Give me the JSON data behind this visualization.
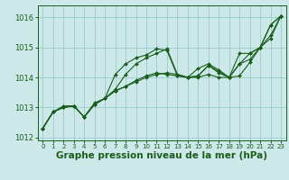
{
  "background_color": "#cce8e8",
  "grid_color": "#99cccc",
  "line_color": "#1a5c1a",
  "marker_color": "#1a5c1a",
  "xlabel": "Graphe pression niveau de la mer (hPa)",
  "xlabel_fontsize": 7.5,
  "xlim": [
    -0.5,
    23.5
  ],
  "ylim": [
    1011.9,
    1016.4
  ],
  "yticks": [
    1012,
    1013,
    1014,
    1015,
    1016
  ],
  "xticks": [
    0,
    1,
    2,
    3,
    4,
    5,
    6,
    7,
    8,
    9,
    10,
    11,
    12,
    13,
    14,
    15,
    16,
    17,
    18,
    19,
    20,
    21,
    22,
    23
  ],
  "series": [
    {
      "x": [
        0,
        1,
        2,
        3,
        4,
        5,
        6,
        7,
        8,
        9,
        10,
        11,
        12,
        13,
        14,
        15,
        16,
        17,
        18,
        19,
        20,
        21,
        22,
        23
      ],
      "y": [
        1012.3,
        1012.85,
        1013.0,
        1013.05,
        1012.68,
        1013.1,
        1013.3,
        1013.55,
        1013.7,
        1013.85,
        1014.0,
        1014.1,
        1014.15,
        1014.1,
        1014.0,
        1014.0,
        1014.1,
        1014.0,
        1014.0,
        1014.05,
        1014.5,
        1015.0,
        1015.3,
        1016.05
      ]
    },
    {
      "x": [
        0,
        1,
        2,
        3,
        4,
        5,
        6,
        7,
        8,
        9,
        10,
        11,
        12,
        13,
        14,
        15,
        16,
        17,
        18,
        19,
        20,
        21,
        22,
        23
      ],
      "y": [
        1012.3,
        1012.85,
        1013.0,
        1013.05,
        1012.68,
        1013.1,
        1013.3,
        1013.6,
        1014.1,
        1014.45,
        1014.65,
        1014.8,
        1014.95,
        1014.1,
        1014.0,
        1014.05,
        1014.4,
        1014.2,
        1014.0,
        1014.45,
        1014.6,
        1015.0,
        1015.75,
        1016.05
      ]
    },
    {
      "x": [
        0,
        1,
        2,
        3,
        4,
        5,
        6,
        7,
        8,
        9,
        10,
        11,
        12,
        13,
        14,
        15,
        16,
        17,
        18,
        19,
        20,
        21,
        22,
        23
      ],
      "y": [
        1012.3,
        1012.85,
        1013.0,
        1013.05,
        1012.68,
        1013.1,
        1013.3,
        1014.1,
        1014.45,
        1014.65,
        1014.75,
        1014.95,
        1014.9,
        1014.05,
        1014.0,
        1014.05,
        1014.4,
        1014.15,
        1014.0,
        1014.45,
        1014.8,
        1015.0,
        1015.75,
        1016.05
      ]
    },
    {
      "x": [
        0,
        1,
        2,
        3,
        4,
        5,
        6,
        7,
        8,
        9,
        10,
        11,
        12,
        13,
        14,
        15,
        16,
        17,
        18,
        19,
        20,
        21,
        22,
        23
      ],
      "y": [
        1012.3,
        1012.85,
        1013.05,
        1013.05,
        1012.68,
        1013.15,
        1013.3,
        1013.55,
        1013.7,
        1013.9,
        1014.05,
        1014.15,
        1014.1,
        1014.05,
        1014.0,
        1014.3,
        1014.45,
        1014.25,
        1014.0,
        1014.8,
        1014.8,
        1015.0,
        1015.4,
        1016.05
      ]
    }
  ]
}
